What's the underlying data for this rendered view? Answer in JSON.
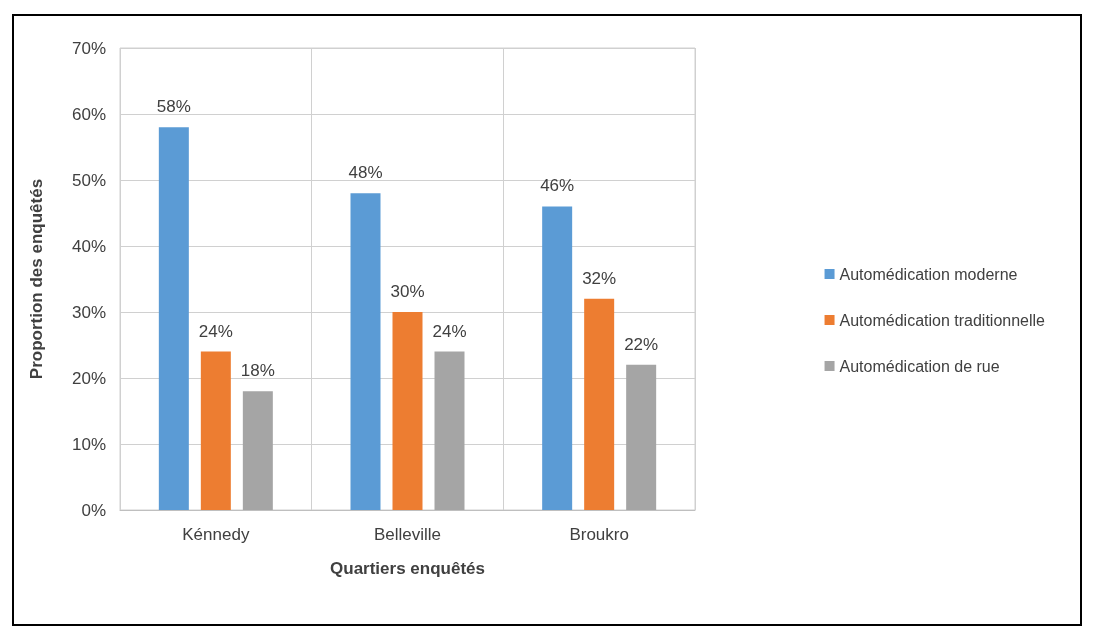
{
  "chart_data": {
    "type": "bar",
    "xlabel": "Quartiers enquêtés",
    "ylabel": "Proportion des enquêtés",
    "categories": [
      "Kénnedy",
      "Belleville",
      "Broukro"
    ],
    "series": [
      {
        "name": "Automédication moderne",
        "color": "#5b9bd5",
        "values": [
          58,
          48,
          46
        ],
        "value_labels": [
          "58%",
          "48%",
          "46%"
        ]
      },
      {
        "name": "Automédication traditionnelle",
        "color": "#ed7d31",
        "values": [
          24,
          30,
          32
        ],
        "value_labels": [
          "24%",
          "30%",
          "32%"
        ]
      },
      {
        "name": "Automédication de rue",
        "color": "#a5a5a5",
        "values": [
          18,
          24,
          22
        ],
        "value_labels": [
          "18%",
          "24%",
          "22%"
        ]
      }
    ],
    "ylim": [
      0,
      70
    ],
    "yticks": [
      {
        "value": 0,
        "label": "0%"
      },
      {
        "value": 10,
        "label": "10%"
      },
      {
        "value": 20,
        "label": "20%"
      },
      {
        "value": 30,
        "label": "30%"
      },
      {
        "value": 40,
        "label": "40%"
      },
      {
        "value": 50,
        "label": "50%"
      },
      {
        "value": 60,
        "label": "60%"
      },
      {
        "value": 70,
        "label": "70%"
      }
    ],
    "grid": true,
    "legend": "right"
  }
}
